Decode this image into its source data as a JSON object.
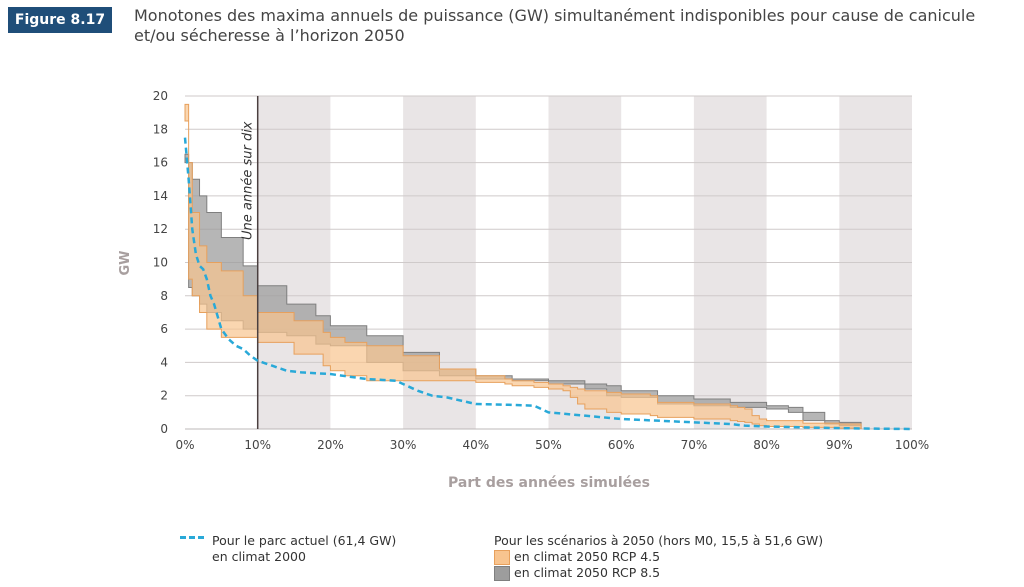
{
  "figure_label": "Figure 8.17",
  "title_line1": "Monotones des maxima annuels de puissance (GW) simultanément indisponibles pour cause de canicule",
  "title_line2": "et/ou sécheresse à l’horizon 2050",
  "colors": {
    "badge": "#1f4e79",
    "current": "#29a9d8",
    "rcp45_fill": "#f8c48f",
    "rcp45_line": "#e7a05c",
    "rcp85_fill": "#9d9d9d",
    "rcp85_line": "#7f7f7f",
    "band": "#e9e5e6",
    "grid": "#cfcaca"
  },
  "chart_data": {
    "type": "area",
    "title": "Monotones des maxima annuels de puissance (GW) simultanément indisponibles pour cause de canicule et/ou sécheresse à l’horizon 2050",
    "xlabel": "Part des années simulées",
    "ylabel": "GW",
    "xlim": [
      0,
      100
    ],
    "ylim": [
      0,
      20
    ],
    "x_ticks": [
      "0%",
      "10%",
      "20%",
      "30%",
      "40%",
      "50%",
      "60%",
      "70%",
      "80%",
      "90%",
      "100%"
    ],
    "y_ticks": [
      "0",
      "2",
      "4",
      "6",
      "8",
      "10",
      "12",
      "14",
      "16",
      "18",
      "20"
    ],
    "grid": true,
    "annotation": {
      "x": 10,
      "label": "Une année sur dix"
    },
    "series": [
      {
        "name": "Pour le parc actuel (61,4 GW) en climat 2000",
        "kind": "line",
        "x": [
          0,
          0.5,
          1,
          1.5,
          2,
          2.5,
          3,
          3.5,
          4,
          5,
          6,
          7,
          8,
          9,
          10,
          12,
          14,
          16,
          20,
          25,
          29,
          30,
          32,
          34,
          36,
          40,
          45,
          48,
          50,
          55,
          60,
          65,
          70,
          75,
          77,
          80,
          85,
          90,
          95,
          100
        ],
        "y": [
          17.5,
          15,
          12,
          10.5,
          9.8,
          9.6,
          9,
          8,
          7.5,
          6,
          5.4,
          5,
          4.8,
          4.4,
          4.1,
          3.8,
          3.5,
          3.4,
          3.3,
          3,
          2.9,
          2.7,
          2.3,
          2,
          1.9,
          1.5,
          1.45,
          1.4,
          1,
          0.8,
          0.6,
          0.5,
          0.4,
          0.3,
          0.2,
          0.15,
          0.1,
          0.05,
          0.02,
          0
        ]
      },
      {
        "name": "en climat 2050 RCP 4.5",
        "kind": "band",
        "x": [
          0,
          0.5,
          1,
          2,
          3,
          5,
          8,
          10,
          15,
          19,
          20,
          22,
          25,
          30,
          35,
          40,
          44,
          45,
          48,
          50,
          52,
          53,
          54,
          55,
          58,
          60,
          64,
          65,
          70,
          75,
          76,
          77,
          78,
          79,
          80,
          85,
          90,
          93
        ],
        "upper": [
          19.5,
          16,
          13,
          11,
          10,
          9.5,
          8,
          7,
          6.5,
          5.8,
          5.5,
          5.2,
          5,
          4.4,
          3.6,
          3.2,
          3,
          2.9,
          2.8,
          2.7,
          2.6,
          2.5,
          2.4,
          2.3,
          2.2,
          2.1,
          2,
          1.6,
          1.5,
          1.4,
          1.3,
          1.2,
          0.8,
          0.6,
          0.5,
          0.35,
          0.3,
          0.25
        ],
        "lower": [
          18.5,
          9,
          8,
          7,
          6,
          5.5,
          5.5,
          5.2,
          4.5,
          3.8,
          3.5,
          3.2,
          2.9,
          2.9,
          2.9,
          2.8,
          2.7,
          2.6,
          2.5,
          2.4,
          2.3,
          1.9,
          1.5,
          1.2,
          1,
          0.9,
          0.8,
          0.7,
          0.6,
          0.5,
          0.45,
          0.4,
          0.3,
          0.2,
          0.15,
          0.1,
          0.05,
          0
        ]
      },
      {
        "name": "en climat 2050 RCP 8.5",
        "kind": "band",
        "x": [
          0,
          0.5,
          1,
          2,
          3,
          5,
          8,
          10,
          14,
          18,
          20,
          25,
          30,
          35,
          40,
          45,
          50,
          55,
          58,
          60,
          65,
          70,
          75,
          80,
          83,
          85,
          88,
          90,
          93
        ],
        "upper": [
          16.5,
          16,
          15,
          14,
          13,
          11.5,
          9.8,
          8.6,
          7.5,
          6.8,
          6.2,
          5.6,
          4.6,
          3.6,
          3.2,
          3,
          2.9,
          2.7,
          2.6,
          2.3,
          2,
          1.8,
          1.6,
          1.4,
          1.3,
          1,
          0.5,
          0.4,
          0.3
        ],
        "lower": [
          16,
          8.5,
          8,
          7.5,
          7,
          6.5,
          6,
          5.8,
          5.6,
          5.1,
          5,
          4,
          3.5,
          3.2,
          3,
          2.9,
          2.7,
          2.4,
          2,
          1.9,
          1.5,
          1.4,
          1.3,
          1.2,
          1,
          0.5,
          0.3,
          0.2,
          0
        ]
      }
    ]
  },
  "legend": {
    "current_line1": "Pour le parc actuel (61,4 GW)",
    "current_line2": "en climat 2000",
    "scenarios_heading": "Pour les scénarios à 2050 (hors M0, 15,5 à 51,6 GW)",
    "rcp45": "en climat 2050 RCP 4.5",
    "rcp85": "en climat 2050 RCP 8.5"
  }
}
